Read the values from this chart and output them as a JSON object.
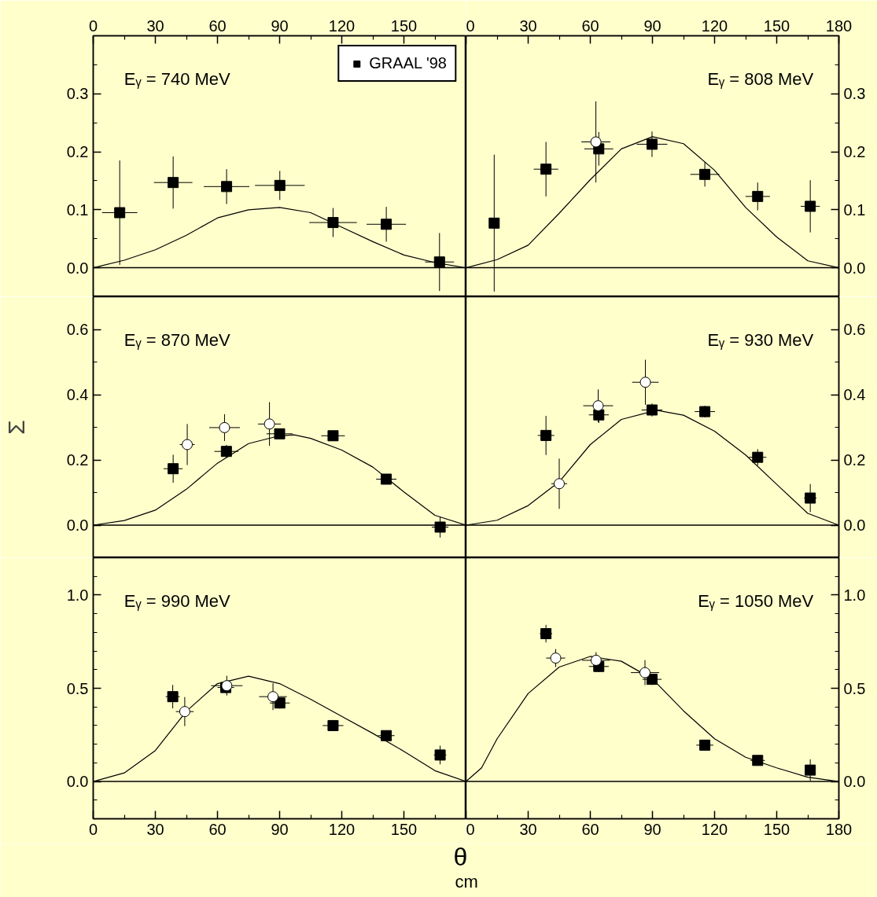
{
  "chart_data": [
    {
      "type": "scatter",
      "annotations": [
        "Eᵧ = 740 MeV"
      ],
      "xlim": [
        0,
        180
      ],
      "xticks": [
        0,
        30,
        60,
        90,
        120,
        150,
        {
          "value": 180,
          "label": null
        },
        {
          "value": 15,
          "label": null
        },
        {
          "value": 45,
          "label": null
        },
        {
          "value": 75,
          "label": null
        },
        {
          "value": 105,
          "label": null
        },
        {
          "value": 135,
          "label": null
        },
        {
          "value": 165,
          "label": null
        }
      ],
      "ylim": [
        -0.05,
        0.4
      ],
      "yticks": [
        {
          "value": 0,
          "label": "0.0"
        },
        0.1,
        0.2,
        0.3,
        {
          "value": 0.05,
          "label": null
        },
        {
          "value": 0.15,
          "label": null
        },
        {
          "value": 0.25,
          "label": null
        },
        {
          "value": 0.35,
          "label": null
        }
      ],
      "ref_lines": [
        {
          "axis": "y",
          "value": 0
        }
      ],
      "legend": "top right",
      "series": [
        {
          "type": "line",
          "color": "#000000",
          "x": [
            0,
            15,
            30,
            45,
            60,
            75,
            90,
            105,
            120,
            135,
            150,
            165,
            180
          ],
          "values": [
            0,
            0.013,
            0.031,
            0.056,
            0.086,
            0.1,
            0.104,
            0.095,
            0.07,
            0.045,
            0.022,
            0.009,
            0
          ]
        },
        {
          "name": "GRAAL '98",
          "marker": "square",
          "color": "#000000",
          "x": [
            12.8,
            38.6,
            64.4,
            90.1,
            115.8,
            141.5,
            167.2
          ],
          "values": [
            0.095,
            0.147,
            0.14,
            0.142,
            0.078,
            0.075,
            0.01
          ],
          "errors": [
            0.09,
            0.045,
            0.03,
            0.025,
            0.025,
            0.03,
            0.05
          ],
          "xerrors": [
            8.5,
            9.3,
            11,
            12,
            11.5,
            9.5,
            7
          ]
        }
      ]
    },
    {
      "type": "scatter",
      "annotations": [
        "Eᵧ = 808 MeV"
      ],
      "xlim": [
        0,
        180
      ],
      "xticks": [
        0,
        30,
        60,
        90,
        120,
        150,
        180,
        {
          "value": 15,
          "label": null
        },
        {
          "value": 45,
          "label": null
        },
        {
          "value": 75,
          "label": null
        },
        {
          "value": 105,
          "label": null
        },
        {
          "value": 135,
          "label": null
        },
        {
          "value": 165,
          "label": null
        }
      ],
      "ylim": [
        -0.05,
        0.4
      ],
      "yticks": [
        {
          "value": 0,
          "label": "0.0"
        },
        0.1,
        0.2,
        0.3,
        {
          "value": 0.05,
          "label": null
        },
        {
          "value": 0.15,
          "label": null
        },
        {
          "value": 0.25,
          "label": null
        },
        {
          "value": 0.35,
          "label": null
        }
      ],
      "ref_lines": [
        {
          "axis": "y",
          "value": 0
        }
      ],
      "series": [
        {
          "type": "line",
          "color": "#000000",
          "x": [
            0,
            15,
            30,
            45,
            60,
            75,
            90,
            105,
            120,
            135,
            150,
            165,
            180
          ],
          "values": [
            0,
            0.014,
            0.039,
            0.094,
            0.152,
            0.205,
            0.226,
            0.214,
            0.168,
            0.104,
            0.053,
            0.012,
            0
          ]
        },
        {
          "marker": "square",
          "color": "#000000",
          "x": [
            13.6,
            38.6,
            64.1,
            89.8,
            115.3,
            140.8,
            166.2
          ],
          "values": [
            0.077,
            0.17,
            0.205,
            0.213,
            0.161,
            0.123,
            0.106
          ],
          "errors": [
            0.118,
            0.047,
            0.029,
            0.022,
            0.021,
            0.024,
            0.045
          ],
          "xerrors": [
            null,
            5.9,
            7,
            7.4,
            7,
            5.9,
            4.6
          ]
        },
        {
          "marker": "circle",
          "color": "#000000",
          "x": [
            62.7
          ],
          "values": [
            0.217
          ],
          "errors": [
            0.07
          ],
          "xerrors": [
            7
          ]
        }
      ]
    },
    {
      "type": "scatter",
      "annotations": [
        "Eᵧ = 870 MeV"
      ],
      "ylabel": "Σ",
      "xlim": [
        0,
        180
      ],
      "tick_labels": "y",
      "ylim": [
        -0.1,
        0.7
      ],
      "yticks": [
        {
          "value": 0,
          "label": "0.0"
        },
        0.2,
        0.4,
        0.6,
        {
          "value": 0.1,
          "label": null
        },
        {
          "value": 0.3,
          "label": null
        },
        {
          "value": 0.5,
          "label": null
        }
      ],
      "ref_lines": [
        {
          "axis": "y",
          "value": 0
        }
      ],
      "series": [
        {
          "type": "line",
          "color": "#000000",
          "x": [
            0,
            15,
            30,
            45,
            60,
            75,
            90,
            97,
            105,
            120,
            135,
            150,
            165,
            180
          ],
          "values": [
            0,
            0.014,
            0.046,
            0.11,
            0.19,
            0.25,
            0.274,
            0.277,
            0.266,
            0.23,
            0.178,
            0.102,
            0.03,
            0
          ]
        },
        {
          "marker": "square",
          "color": "#000000",
          "x": [
            38.6,
            64.3,
            90,
            115.8,
            141.5,
            167.5
          ],
          "values": [
            0.173,
            0.226,
            0.28,
            0.274,
            0.141,
            -0.006
          ],
          "errors": [
            0.043,
            0.02,
            0.015,
            0.01,
            0.015,
            0.032
          ],
          "xerrors": [
            4.6,
            5.8,
            6.3,
            5.7,
            4.9,
            4
          ]
        },
        {
          "marker": "circle",
          "color": "#000000",
          "x": [
            45.4,
            63.4,
            85.1
          ],
          "values": [
            0.247,
            0.299,
            0.31
          ],
          "errors": [
            0.063,
            0.041,
            0.067
          ],
          "xerrors": [
            3.6,
            7.4,
            5.5
          ]
        }
      ]
    },
    {
      "type": "scatter",
      "annotations": [
        "Eᵧ = 930 MeV"
      ],
      "xlim": [
        0,
        180
      ],
      "tick_labels": "y",
      "ylim": [
        -0.1,
        0.7
      ],
      "yticks": [
        {
          "value": 0,
          "label": "0.0"
        },
        0.2,
        0.4,
        0.6,
        {
          "value": 0.1,
          "label": null
        },
        {
          "value": 0.3,
          "label": null
        },
        {
          "value": 0.5,
          "label": null
        }
      ],
      "ref_lines": [
        {
          "axis": "y",
          "value": 0
        }
      ],
      "series": [
        {
          "type": "line",
          "color": "#000000",
          "x": [
            0,
            15,
            30,
            45,
            60,
            75,
            92,
            105,
            120,
            135,
            150,
            165,
            180
          ],
          "values": [
            0,
            0.015,
            0.06,
            0.133,
            0.247,
            0.324,
            0.352,
            0.337,
            0.288,
            0.215,
            0.125,
            0.036,
            0
          ]
        },
        {
          "marker": "square",
          "color": "#000000",
          "x": [
            38.6,
            64.1,
            89.8,
            115.3,
            140.8,
            166.2
          ],
          "values": [
            0.275,
            0.338,
            0.353,
            0.348,
            0.208,
            0.083
          ],
          "errors": [
            0.06,
            0.025,
            0.02,
            0.018,
            0.025,
            0.043
          ],
          "xerrors": [
            4,
            4.8,
            5,
            4.9,
            4.2,
            3
          ]
        },
        {
          "marker": "circle",
          "color": "#000000",
          "x": [
            45,
            63.8,
            86.6
          ],
          "values": [
            0.127,
            0.366,
            0.438
          ],
          "errors": [
            0.077,
            0.05,
            0.069
          ],
          "xerrors": [
            3.8,
            7.2,
            6.4
          ]
        }
      ]
    },
    {
      "type": "scatter",
      "annotations": [
        "Eᵧ = 990 MeV"
      ],
      "xlabel": "θ$_{cm}$",
      "xlim": [
        0,
        180
      ],
      "xticks": [
        0,
        30,
        60,
        90,
        120,
        150,
        {
          "value": 180,
          "label": null
        },
        {
          "value": 15,
          "label": null
        },
        {
          "value": 45,
          "label": null
        },
        {
          "value": 75,
          "label": null
        },
        {
          "value": 105,
          "label": null
        },
        {
          "value": 135,
          "label": null
        },
        {
          "value": 165,
          "label": null
        }
      ],
      "ylim": [
        -0.2,
        1.2
      ],
      "yticks": [
        {
          "value": 0,
          "label": "0.0"
        },
        0.5,
        {
          "value": 1,
          "label": "1.0"
        },
        {
          "value": -0.1,
          "label": null
        },
        {
          "value": 0.1,
          "label": null
        },
        {
          "value": 0.2,
          "label": null
        },
        {
          "value": 0.3,
          "label": null
        },
        {
          "value": 0.4,
          "label": null
        },
        {
          "value": 0.6,
          "label": null
        },
        {
          "value": 0.7,
          "label": null
        },
        {
          "value": 0.8,
          "label": null
        },
        {
          "value": 0.9,
          "label": null
        },
        {
          "value": 1.1,
          "label": null
        }
      ],
      "ref_lines": [
        {
          "axis": "y",
          "value": 0
        }
      ],
      "series": [
        {
          "type": "line",
          "color": "#000000",
          "x": [
            0,
            15,
            30,
            45,
            60,
            75,
            90,
            105,
            120,
            135,
            150,
            165,
            180
          ],
          "values": [
            0,
            0.046,
            0.166,
            0.377,
            0.525,
            0.565,
            0.525,
            0.441,
            0.349,
            0.258,
            0.162,
            0.058,
            0
          ]
        },
        {
          "marker": "square",
          "color": "#000000",
          "x": [
            38.4,
            64,
            90.1,
            115.8,
            141.5,
            167.5
          ],
          "values": [
            0.455,
            0.504,
            0.421,
            0.3,
            0.246,
            0.142
          ],
          "errors": [
            0.063,
            0.03,
            0.03,
            0.015,
            0.02,
            0.05
          ],
          "xerrors": [
            3.4,
            4,
            4.8,
            5,
            4,
            3
          ]
        },
        {
          "marker": "circle",
          "color": "#000000",
          "x": [
            44.2,
            64.5,
            86.8
          ],
          "values": [
            0.375,
            0.514,
            0.455
          ],
          "errors": [
            0.078,
            0.053,
            0.072
          ],
          "xerrors": [
            4.3,
            7.6,
            6.7
          ]
        }
      ]
    },
    {
      "type": "scatter",
      "annotations": [
        "Eᵧ = 1050 MeV"
      ],
      "xlim": [
        0,
        180
      ],
      "xticks": [
        0,
        30,
        60,
        90,
        120,
        150,
        180,
        {
          "value": 15,
          "label": null
        },
        {
          "value": 45,
          "label": null
        },
        {
          "value": 75,
          "label": null
        },
        {
          "value": 105,
          "label": null
        },
        {
          "value": 135,
          "label": null
        },
        {
          "value": 165,
          "label": null
        }
      ],
      "ylim": [
        -0.2,
        1.2
      ],
      "yticks": [
        {
          "value": 0,
          "label": "0.0"
        },
        0.5,
        {
          "value": 1,
          "label": "1.0"
        },
        {
          "value": -0.1,
          "label": null
        },
        {
          "value": 0.1,
          "label": null
        },
        {
          "value": 0.2,
          "label": null
        },
        {
          "value": 0.3,
          "label": null
        },
        {
          "value": 0.4,
          "label": null
        },
        {
          "value": 0.6,
          "label": null
        },
        {
          "value": 0.7,
          "label": null
        },
        {
          "value": 0.8,
          "label": null
        },
        {
          "value": 0.9,
          "label": null
        },
        {
          "value": 1.1,
          "label": null
        }
      ],
      "ref_lines": [
        {
          "axis": "y",
          "value": 0
        }
      ],
      "series": [
        {
          "type": "line",
          "color": "#000000",
          "x": [
            0,
            7.5,
            15,
            30,
            45,
            60,
            75,
            90,
            105,
            120,
            135,
            150,
            165,
            180
          ],
          "values": [
            0,
            0.073,
            0.229,
            0.472,
            0.614,
            0.671,
            0.645,
            0.55,
            0.379,
            0.229,
            0.13,
            0.073,
            0.023,
            0
          ]
        },
        {
          "marker": "square",
          "color": "#000000",
          "x": [
            38.6,
            64.1,
            89.8,
            115.3,
            140.8,
            166.2
          ],
          "values": [
            0.793,
            0.617,
            0.548,
            0.195,
            0.113,
            0.061
          ],
          "errors": [
            0.047,
            0.03,
            0.03,
            0.02,
            0.02,
            0.058
          ],
          "xerrors": [
            3,
            4.8,
            4.6,
            4.1,
            3.5,
            2
          ]
        },
        {
          "marker": "circle",
          "color": "#000000",
          "x": [
            43.3,
            62.8,
            86.4
          ],
          "values": [
            0.662,
            0.65,
            0.584
          ],
          "errors": [
            0.048,
            0.044,
            0.067
          ],
          "xerrors": [
            4.6,
            6.8,
            6.8
          ]
        }
      ]
    }
  ]
}
